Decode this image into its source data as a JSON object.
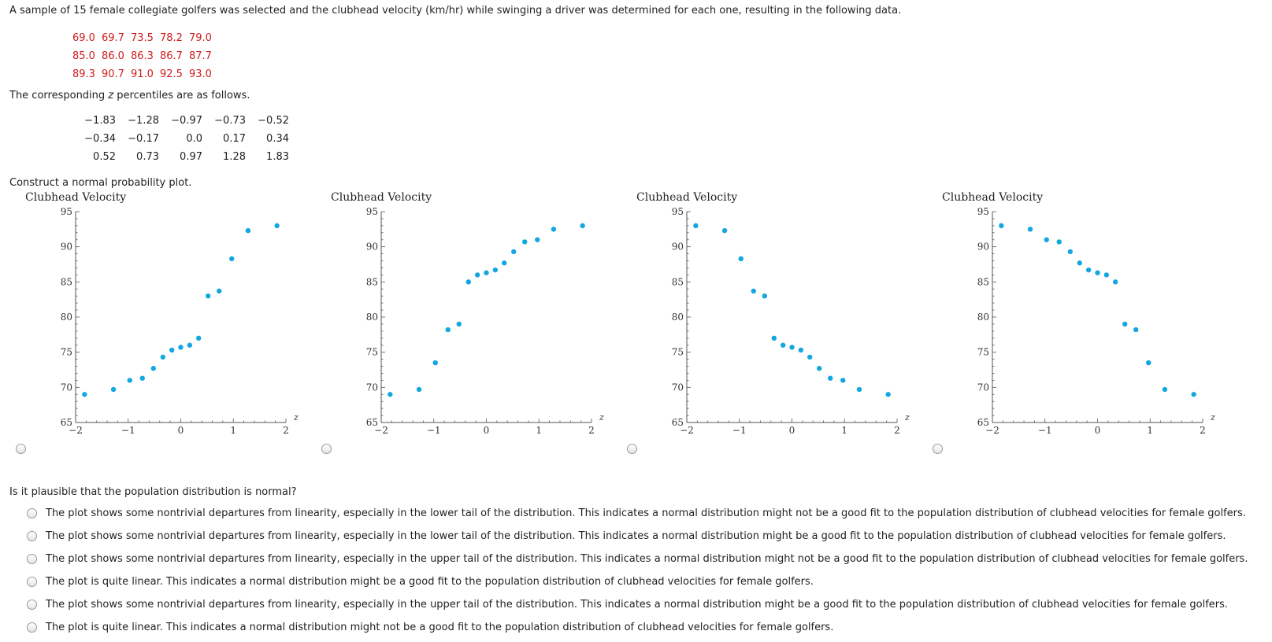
{
  "intro_text": "A sample of 15 female collegiate golfers was selected and the clubhead velocity (km/hr) while swinging a driver was determined for each one, resulting in the following data.",
  "velocity_rows": [
    [
      "69.0",
      "69.7",
      "73.5",
      "78.2",
      "79.0"
    ],
    [
      "85.0",
      "86.0",
      "86.3",
      "86.7",
      "87.7"
    ],
    [
      "89.3",
      "90.7",
      "91.0",
      "92.5",
      "93.0"
    ]
  ],
  "percentile_text_before": "The corresponding ",
  "percentile_text_var": "z",
  "percentile_text_after": " percentiles are as follows.",
  "z_rows": [
    [
      "−1.83",
      "−1.28",
      "−0.97",
      "−0.73",
      "−0.52"
    ],
    [
      "−0.34",
      "−0.17",
      "0.0",
      "0.17",
      "0.34"
    ],
    [
      "0.52",
      "0.73",
      "0.97",
      "1.28",
      "1.83"
    ]
  ],
  "construct_text": "Construct a normal probability plot.",
  "chart_data": [
    {
      "type": "scatter",
      "title": "Clubhead Velocity",
      "xlabel": "z",
      "xlim": [
        -2,
        2
      ],
      "ylim": [
        65,
        95
      ],
      "xticks": [
        "−2",
        "−1",
        "0",
        "1",
        "2"
      ],
      "yticks": [
        "65",
        "70",
        "75",
        "80",
        "85",
        "90",
        "95"
      ],
      "x": [
        -1.83,
        -1.28,
        -0.97,
        -0.73,
        -0.52,
        -0.34,
        -0.17,
        0.0,
        0.17,
        0.34,
        0.52,
        0.73,
        0.97,
        1.28,
        1.83
      ],
      "y": [
        69.0,
        69.7,
        71.0,
        71.3,
        72.7,
        74.3,
        75.3,
        75.7,
        76.0,
        77.0,
        83.0,
        83.7,
        88.3,
        92.3,
        93.0
      ],
      "color": "#13a7e0"
    },
    {
      "type": "scatter",
      "title": "Clubhead Velocity",
      "xlabel": "z",
      "xlim": [
        -2,
        2
      ],
      "ylim": [
        65,
        95
      ],
      "xticks": [
        "−2",
        "−1",
        "0",
        "1",
        "2"
      ],
      "yticks": [
        "65",
        "70",
        "75",
        "80",
        "85",
        "90",
        "95"
      ],
      "x": [
        -1.83,
        -1.28,
        -0.97,
        -0.73,
        -0.52,
        -0.34,
        -0.17,
        0.0,
        0.17,
        0.34,
        0.52,
        0.73,
        0.97,
        1.28,
        1.83
      ],
      "y": [
        69.0,
        69.7,
        73.5,
        78.2,
        79.0,
        85.0,
        86.0,
        86.3,
        86.7,
        87.7,
        89.3,
        90.7,
        91.0,
        92.5,
        93.0
      ],
      "color": "#13a7e0"
    },
    {
      "type": "scatter",
      "title": "Clubhead Velocity",
      "xlabel": "z",
      "xlim": [
        -2,
        2
      ],
      "ylim": [
        65,
        95
      ],
      "xticks": [
        "−2",
        "−1",
        "0",
        "1",
        "2"
      ],
      "yticks": [
        "65",
        "70",
        "75",
        "80",
        "85",
        "90",
        "95"
      ],
      "x": [
        -1.83,
        -1.28,
        -0.97,
        -0.73,
        -0.52,
        -0.34,
        -0.17,
        0.0,
        0.17,
        0.34,
        0.52,
        0.73,
        0.97,
        1.28,
        1.83
      ],
      "y": [
        93.0,
        92.3,
        88.3,
        83.7,
        83.0,
        77.0,
        76.0,
        75.7,
        75.3,
        74.3,
        72.7,
        71.3,
        71.0,
        69.7,
        69.0
      ],
      "color": "#13a7e0"
    },
    {
      "type": "scatter",
      "title": "Clubhead Velocity",
      "xlabel": "z",
      "xlim": [
        -2,
        2
      ],
      "ylim": [
        65,
        95
      ],
      "xticks": [
        "−2",
        "−1",
        "0",
        "1",
        "2"
      ],
      "yticks": [
        "65",
        "70",
        "75",
        "80",
        "85",
        "90",
        "95"
      ],
      "x": [
        -1.83,
        -1.28,
        -0.97,
        -0.73,
        -0.52,
        -0.34,
        -0.17,
        0.0,
        0.17,
        0.34,
        0.52,
        0.73,
        0.97,
        1.28,
        1.83
      ],
      "y": [
        93.0,
        92.5,
        91.0,
        90.7,
        89.3,
        87.7,
        86.7,
        86.3,
        86.0,
        85.0,
        79.0,
        78.2,
        73.5,
        69.7,
        69.0
      ],
      "color": "#13a7e0"
    }
  ],
  "question": "Is it plausible that the population distribution is normal?",
  "options": [
    "The plot shows some nontrivial departures from linearity, especially in the lower tail of the distribution. This indicates a normal distribution might not be a good fit to the population distribution of clubhead velocities for female golfers.",
    "The plot shows some nontrivial departures from linearity, especially in the lower tail of the distribution. This indicates a normal distribution might be a good fit to the population distribution of clubhead velocities for female golfers.",
    "The plot shows some nontrivial departures from linearity, especially in the upper tail of the distribution. This indicates a normal distribution might not be a good fit to the population distribution of clubhead velocities for female golfers.",
    "The plot is quite linear. This indicates a normal distribution might be a good fit to the population distribution of clubhead velocities for female golfers.",
    "The plot shows some nontrivial departures from linearity, especially in the upper tail of the distribution. This indicates a normal distribution might be a good fit to the population distribution of clubhead velocities for female golfers.",
    "The plot is quite linear. This indicates a normal distribution might not be a good fit to the population distribution of clubhead velocities for female golfers."
  ]
}
